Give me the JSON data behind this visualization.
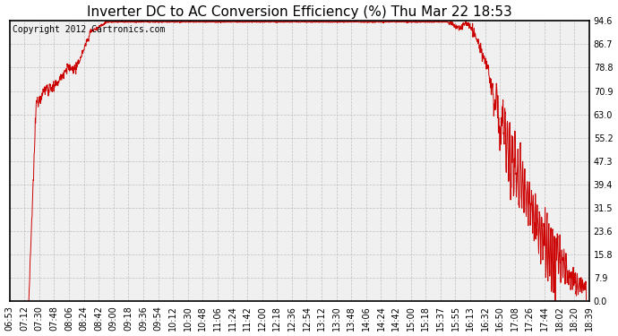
{
  "title": "Inverter DC to AC Conversion Efficiency (%) Thu Mar 22 18:53",
  "copyright": "Copyright 2012 Cartronics.com",
  "yticks": [
    0.0,
    7.9,
    15.8,
    23.6,
    31.5,
    39.4,
    47.3,
    55.2,
    63.0,
    70.9,
    78.8,
    86.7,
    94.6
  ],
  "ymax": 94.6,
  "ymin": 0.0,
  "line_color": "#cc0000",
  "bg_color": "#ffffff",
  "plot_bg_color": "#f0f0f0",
  "grid_color": "#aaaaaa",
  "xtick_labels": [
    "06:53",
    "07:12",
    "07:30",
    "07:48",
    "08:06",
    "08:24",
    "08:42",
    "09:00",
    "09:18",
    "09:36",
    "09:54",
    "10:12",
    "10:30",
    "10:48",
    "11:06",
    "11:24",
    "11:42",
    "12:00",
    "12:18",
    "12:36",
    "12:54",
    "13:12",
    "13:30",
    "13:48",
    "14:06",
    "14:24",
    "14:42",
    "15:00",
    "15:18",
    "15:37",
    "15:55",
    "16:13",
    "16:32",
    "16:50",
    "17:08",
    "17:26",
    "17:44",
    "18:02",
    "18:20",
    "18:39"
  ],
  "title_fontsize": 11,
  "copyright_fontsize": 7,
  "tick_fontsize": 7,
  "title_color": "#000000",
  "border_color": "#000000",
  "figwidth": 6.9,
  "figheight": 3.75,
  "dpi": 100
}
